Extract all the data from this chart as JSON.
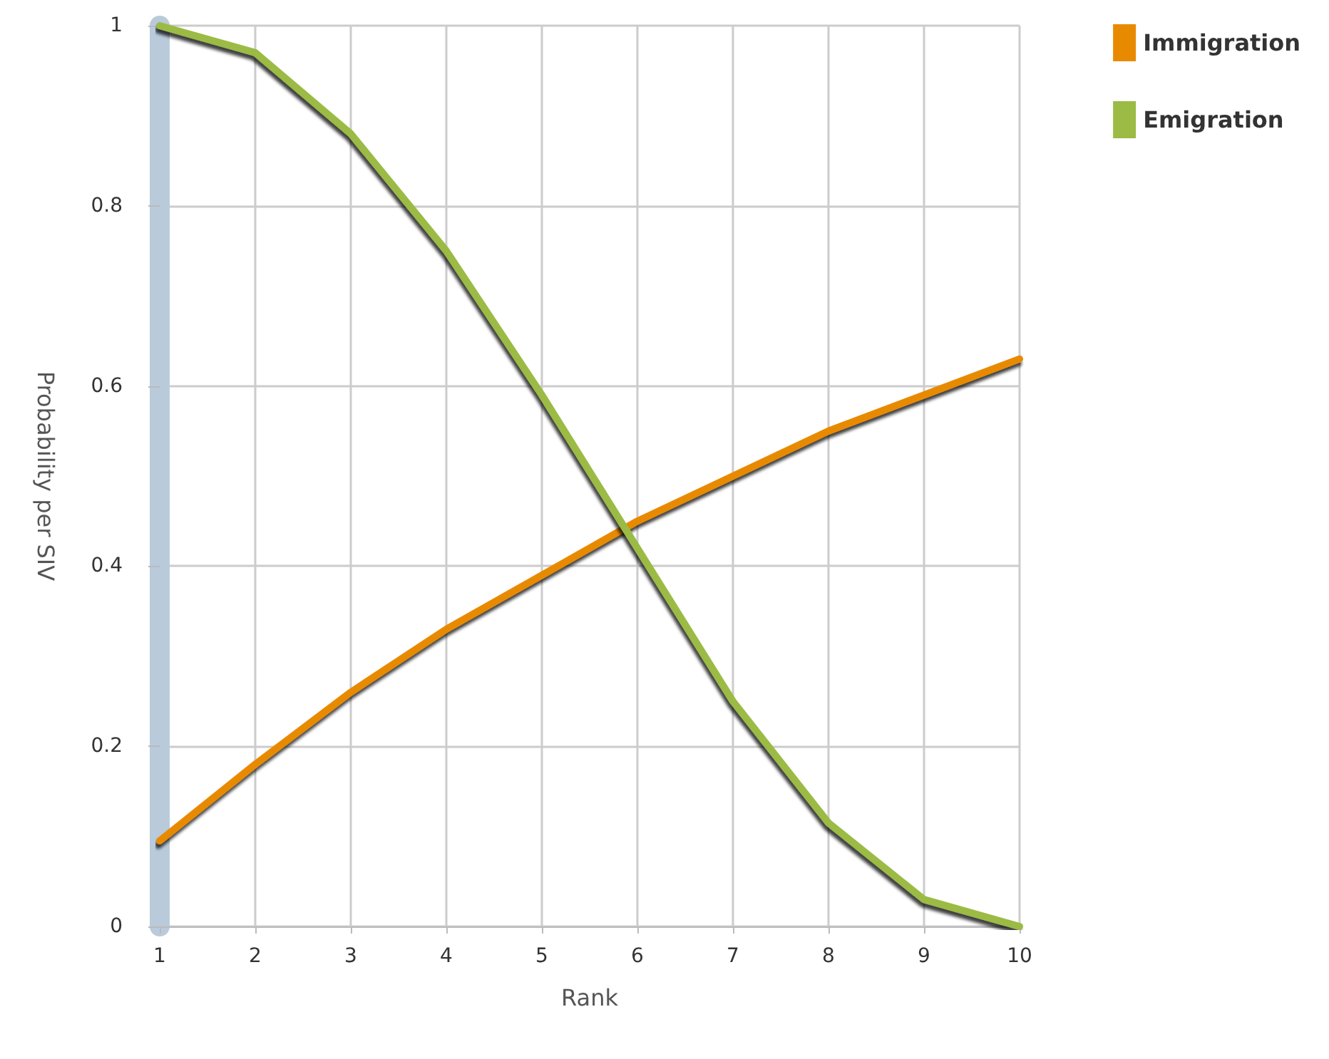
{
  "chart_data": {
    "type": "line",
    "xlabel": "Rank",
    "ylabel": "Probability per SIV",
    "x": [
      1,
      2,
      3,
      4,
      5,
      6,
      7,
      8,
      9,
      10
    ],
    "series": [
      {
        "name": "Immigration",
        "color": "#e88a00",
        "values": [
          0.095,
          0.18,
          0.26,
          0.33,
          0.39,
          0.45,
          0.5,
          0.55,
          0.59,
          0.63
        ]
      },
      {
        "name": "Emigration",
        "color": "#9bbb45",
        "values": [
          1.0,
          0.97,
          0.88,
          0.75,
          0.59,
          0.42,
          0.25,
          0.115,
          0.03,
          0.0
        ]
      }
    ],
    "xlim": [
      1,
      10
    ],
    "xticks": [
      1,
      2,
      3,
      4,
      5,
      6,
      7,
      8,
      9,
      10
    ],
    "ylim": [
      0,
      1
    ],
    "yticks": [
      0,
      0.2,
      0.4,
      0.6,
      0.8,
      1
    ],
    "grid": true,
    "legend": "top right",
    "marker": "none",
    "line_style": "solid"
  }
}
